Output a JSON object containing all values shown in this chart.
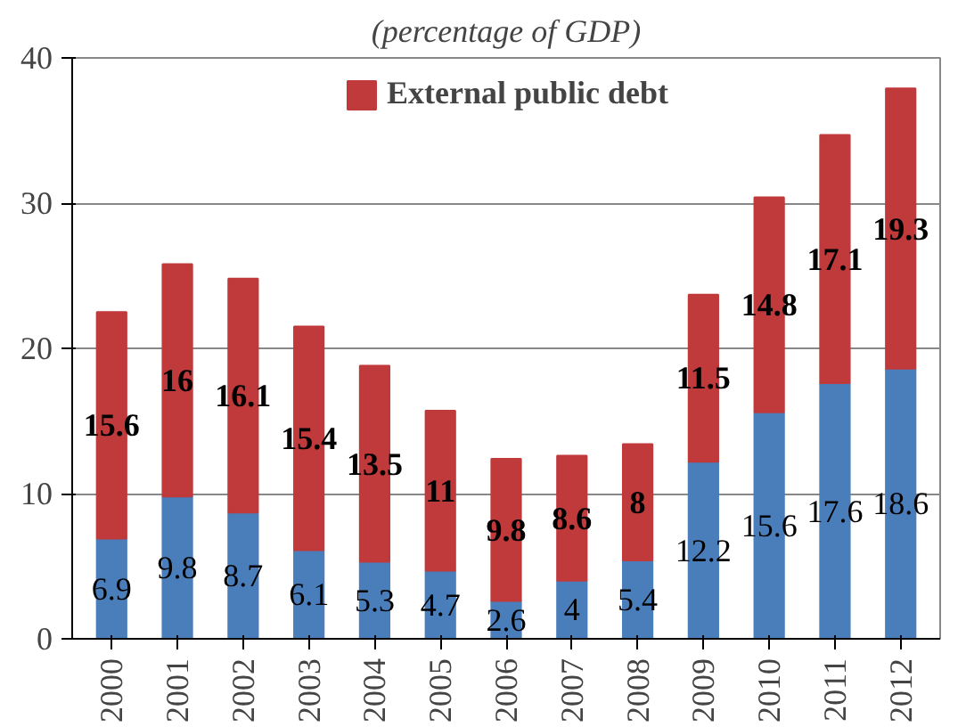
{
  "chart_data": {
    "type": "bar",
    "title": "(percentage of GDP)",
    "stacked": true,
    "categories": [
      "2000",
      "2001",
      "2002",
      "2003",
      "2004",
      "2005",
      "2006",
      "2007",
      "2008",
      "2009",
      "2010",
      "2011",
      "2012"
    ],
    "series": [
      {
        "color": "#4a7ebb",
        "values": [
          6.9,
          9.8,
          8.7,
          6.1,
          5.3,
          4.7,
          2.6,
          4,
          5.4,
          12.2,
          15.6,
          17.6,
          18.6
        ]
      },
      {
        "name": "External public debt",
        "color": "#c0393b",
        "values": [
          15.6,
          16,
          16.1,
          15.4,
          13.5,
          11,
          9.8,
          8.6,
          8,
          11.5,
          14.8,
          17.1,
          19.3
        ]
      }
    ],
    "ylim": [
      0,
      40
    ],
    "yticks": [
      0,
      10,
      20,
      30,
      40
    ],
    "grid": "y",
    "legend": "top",
    "data_labels": true
  }
}
